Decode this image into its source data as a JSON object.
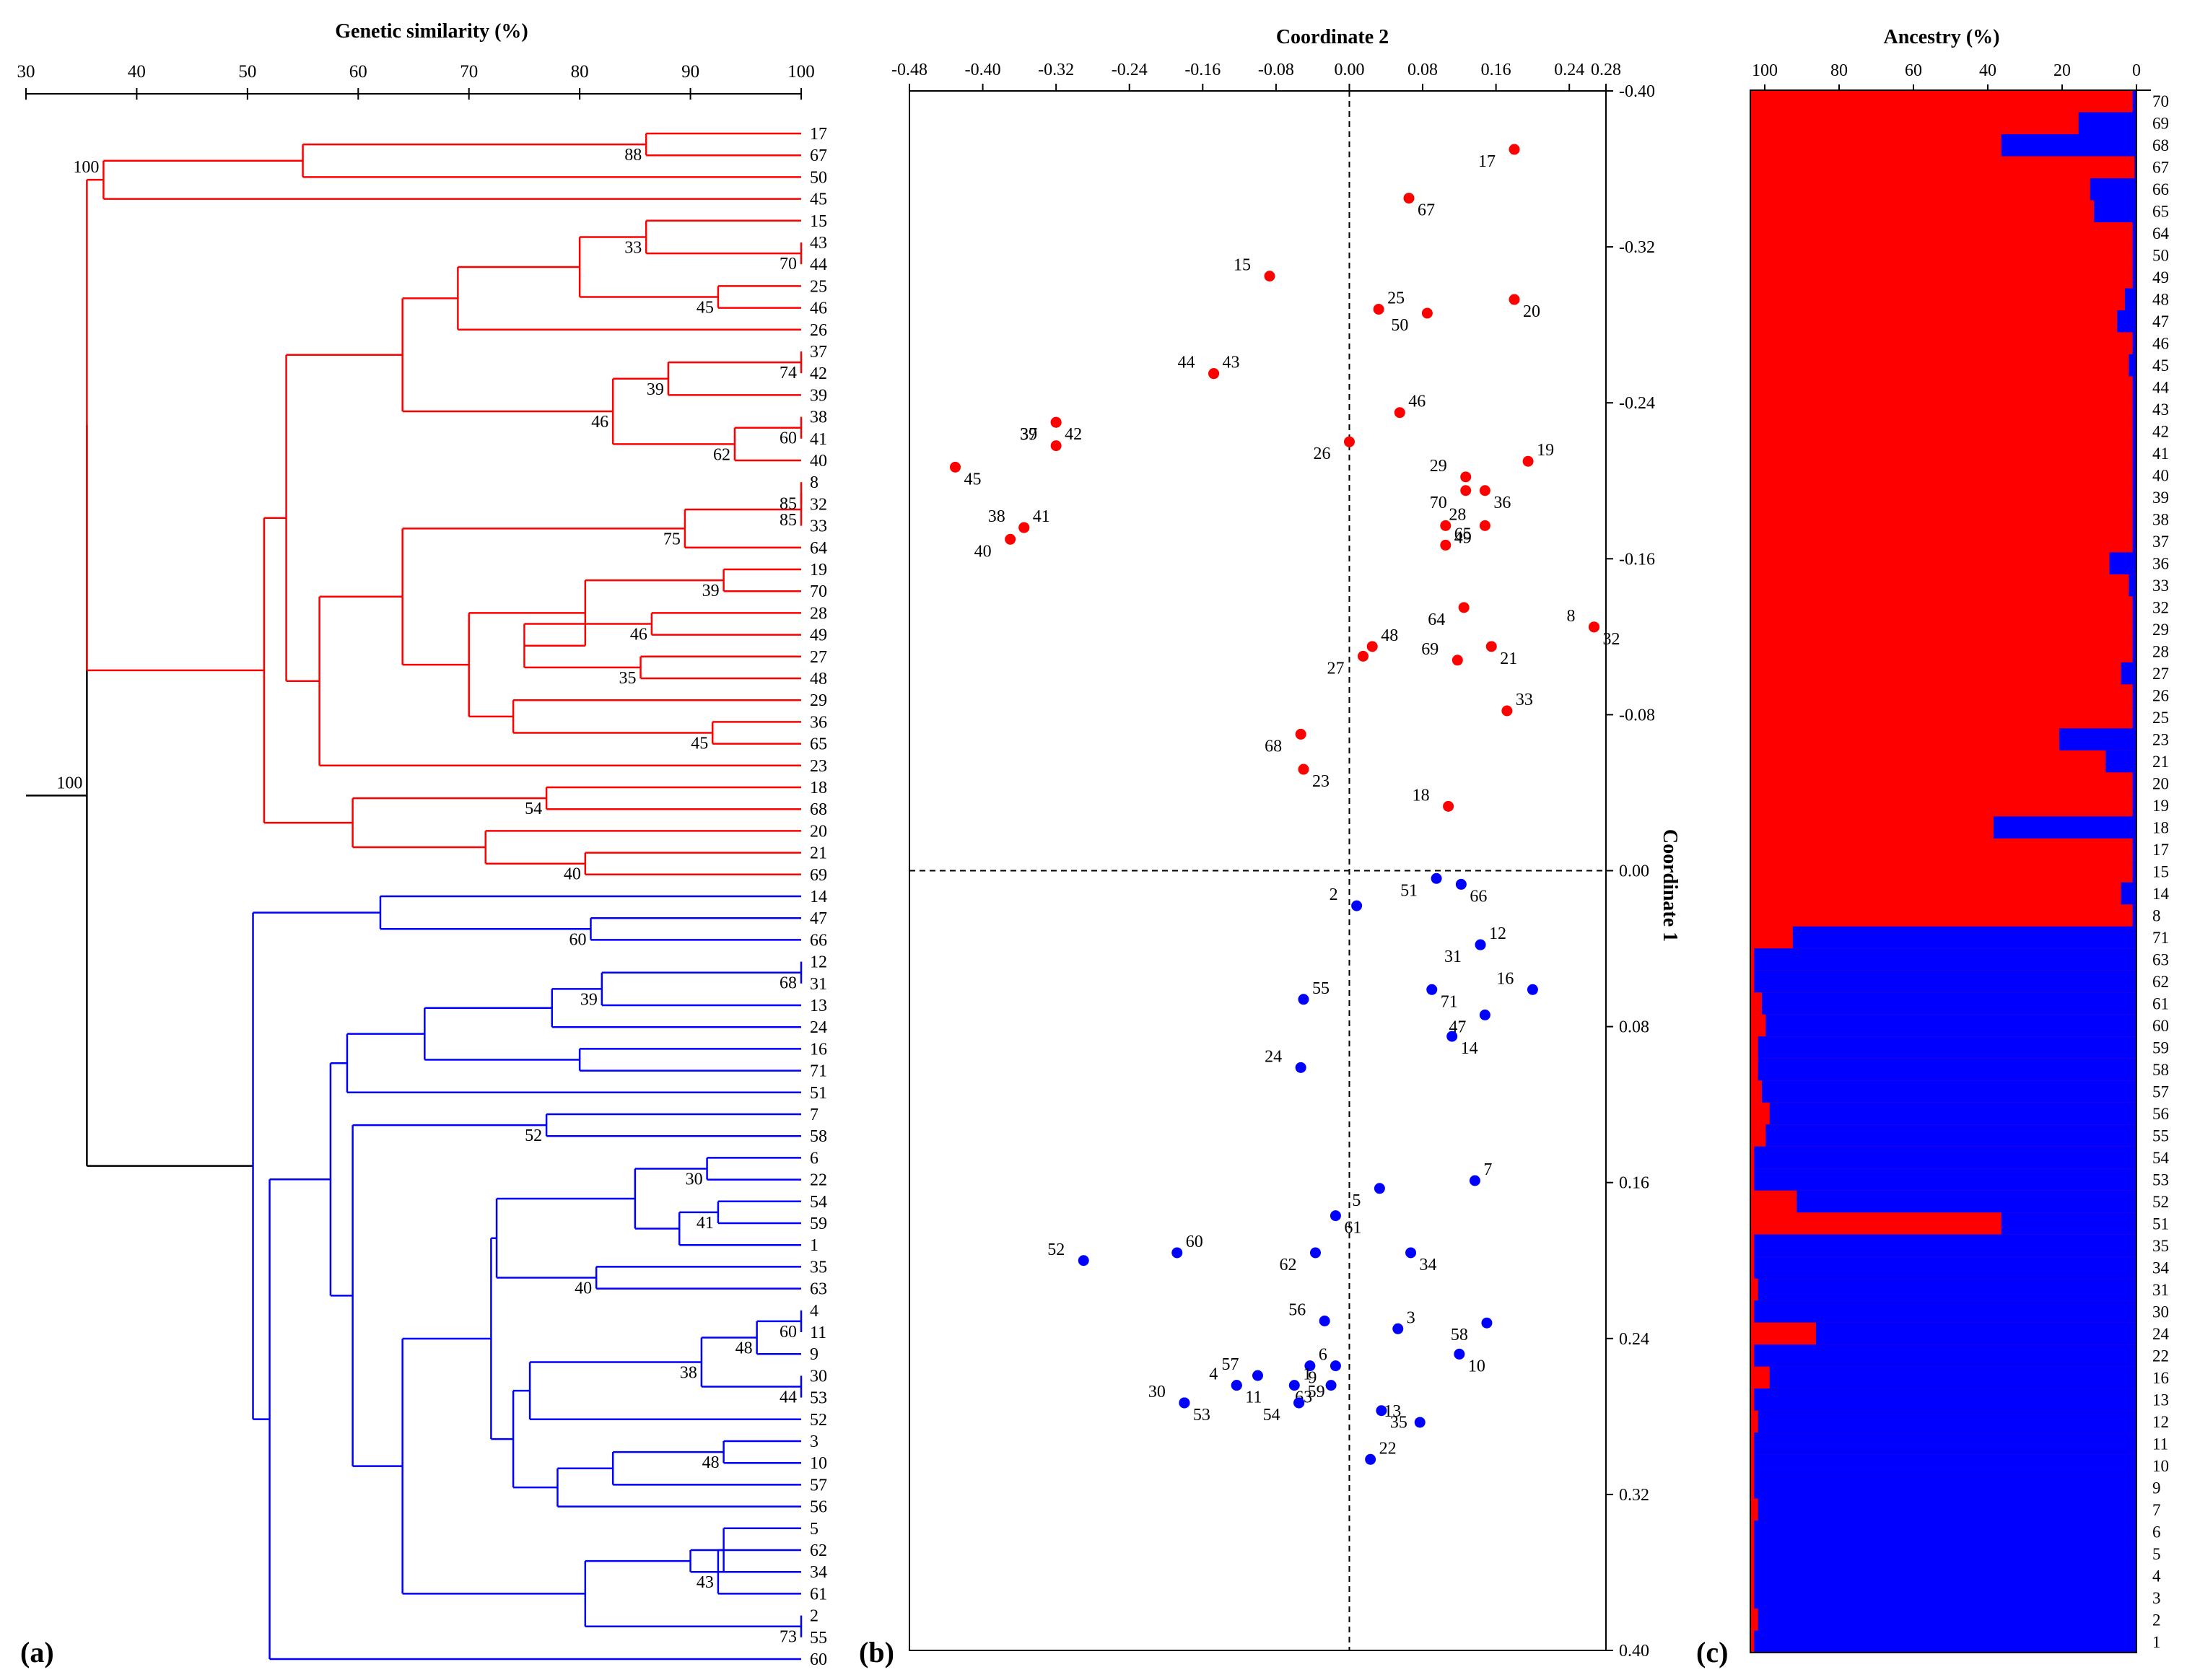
{
  "panel_a": {
    "label": "(a)",
    "title": "Genetic similarity (%)",
    "ticks": [
      30,
      40,
      50,
      60,
      70,
      80,
      90,
      100
    ],
    "leaf_order": [
      17,
      67,
      50,
      45,
      15,
      43,
      44,
      25,
      46,
      26,
      37,
      42,
      39,
      38,
      41,
      40,
      8,
      32,
      33,
      64,
      19,
      70,
      28,
      49,
      27,
      48,
      29,
      36,
      65,
      23,
      18,
      68,
      20,
      21,
      69,
      14,
      47,
      66,
      12,
      31,
      13,
      24,
      16,
      71,
      51,
      7,
      58,
      6,
      22,
      54,
      59,
      1,
      35,
      63,
      4,
      11,
      9,
      30,
      53,
      52,
      3,
      10,
      57,
      56,
      5,
      62,
      34,
      61,
      2,
      55,
      60
    ],
    "bootstrap": [
      "100",
      "88",
      "33",
      "70",
      "45",
      "74",
      "39",
      "46",
      "60",
      "62",
      "85",
      "85",
      "75",
      "39",
      "46",
      "35",
      "45",
      "54",
      "40",
      "100",
      "60",
      "68",
      "39",
      "52",
      "30",
      "41",
      "40",
      "60",
      "48",
      "38",
      "44",
      "48",
      "43",
      "73"
    ]
  },
  "panel_b": {
    "label": "(b)",
    "title": "Coordinate 2",
    "ylabel": "Coordinate 1"
  },
  "panel_c": {
    "label": "(c)",
    "title": "Ancestry (%)",
    "ticks": [
      "100",
      "80",
      "60",
      "40",
      "20",
      "0"
    ]
  },
  "colors": {
    "group1": "#ff0000",
    "group2": "#0000ff",
    "root": "#000000"
  },
  "chart_data": [
    {
      "type": "dendrogram",
      "title": "Genetic similarity (%)",
      "xlim": [
        30,
        100
      ],
      "clusters": [
        {
          "name": "red",
          "members": [
            17,
            67,
            50,
            45,
            15,
            43,
            44,
            25,
            46,
            26,
            37,
            42,
            39,
            38,
            41,
            40,
            8,
            32,
            33,
            64,
            19,
            70,
            28,
            49,
            27,
            48,
            29,
            36,
            65,
            23,
            18,
            68,
            20,
            21,
            69
          ]
        },
        {
          "name": "blue",
          "members": [
            14,
            47,
            66,
            12,
            31,
            13,
            24,
            16,
            71,
            51,
            7,
            58,
            6,
            22,
            54,
            59,
            1,
            35,
            63,
            4,
            11,
            9,
            30,
            53,
            52,
            3,
            10,
            57,
            56,
            5,
            62,
            34,
            61,
            2,
            55,
            60
          ]
        }
      ],
      "root_similarity": 35.5
    },
    {
      "type": "scatter",
      "title": "Coordinate 2",
      "xlabel": "Coordinate 2",
      "ylabel": "Coordinate 1",
      "xlim": [
        -0.48,
        0.28
      ],
      "ylim": [
        -0.4,
        0.4
      ],
      "xticks": [
        "-0.48",
        "-0.40",
        "-0.32",
        "-0.24",
        "-0.16",
        "-0.08",
        "0.00",
        "0.08",
        "0.16",
        "0.24",
        "0.28"
      ],
      "yticks": [
        "-0.40",
        "-0.32",
        "-0.24",
        "-0.16",
        "-0.08",
        "0.00",
        "0.08",
        "0.16",
        "0.24",
        "0.32",
        "0.40"
      ],
      "series": [
        {
          "name": "red",
          "points": [
            {
              "id": "17",
              "x": 0.18,
              "y": -0.37
            },
            {
              "id": "67",
              "x": 0.065,
              "y": -0.345
            },
            {
              "id": "15",
              "x": -0.087,
              "y": -0.305
            },
            {
              "id": "25",
              "x": 0.032,
              "y": -0.288
            },
            {
              "id": "50",
              "x": 0.085,
              "y": -0.286
            },
            {
              "id": "20",
              "x": 0.18,
              "y": -0.293
            },
            {
              "id": "44",
              "x": -0.148,
              "y": -0.255
            },
            {
              "id": "43",
              "x": -0.148,
              "y": -0.255
            },
            {
              "id": "37",
              "x": -0.32,
              "y": -0.23
            },
            {
              "id": "42",
              "x": -0.32,
              "y": -0.23
            },
            {
              "id": "39",
              "x": -0.32,
              "y": -0.218
            },
            {
              "id": "46",
              "x": 0.055,
              "y": -0.235
            },
            {
              "id": "26",
              "x": 0.0,
              "y": -0.22
            },
            {
              "id": "45",
              "x": -0.43,
              "y": -0.207
            },
            {
              "id": "29",
              "x": 0.127,
              "y": -0.202
            },
            {
              "id": "19",
              "x": 0.195,
              "y": -0.21
            },
            {
              "id": "70",
              "x": 0.127,
              "y": -0.195
            },
            {
              "id": "36",
              "x": 0.148,
              "y": -0.195
            },
            {
              "id": "38",
              "x": -0.355,
              "y": -0.176
            },
            {
              "id": "41",
              "x": -0.355,
              "y": -0.176
            },
            {
              "id": "40",
              "x": -0.37,
              "y": -0.17
            },
            {
              "id": "49",
              "x": 0.105,
              "y": -0.177
            },
            {
              "id": "28",
              "x": 0.148,
              "y": -0.177
            },
            {
              "id": "65",
              "x": 0.105,
              "y": -0.167
            },
            {
              "id": "64",
              "x": 0.125,
              "y": -0.135
            },
            {
              "id": "32",
              "x": 0.267,
              "y": -0.125
            },
            {
              "id": "8",
              "x": 0.267,
              "y": -0.125
            },
            {
              "id": "48",
              "x": 0.025,
              "y": -0.115
            },
            {
              "id": "27",
              "x": 0.015,
              "y": -0.11
            },
            {
              "id": "21",
              "x": 0.155,
              "y": -0.115
            },
            {
              "id": "69",
              "x": 0.118,
              "y": -0.108
            },
            {
              "id": "33",
              "x": 0.172,
              "y": -0.082
            },
            {
              "id": "68",
              "x": -0.053,
              "y": -0.07
            },
            {
              "id": "23",
              "x": -0.05,
              "y": -0.052
            },
            {
              "id": "18",
              "x": 0.108,
              "y": -0.033
            }
          ]
        },
        {
          "name": "blue",
          "points": [
            {
              "id": "51",
              "x": 0.095,
              "y": 0.004
            },
            {
              "id": "66",
              "x": 0.122,
              "y": 0.007
            },
            {
              "id": "2",
              "x": 0.008,
              "y": 0.018
            },
            {
              "id": "12",
              "x": 0.143,
              "y": 0.038
            },
            {
              "id": "31",
              "x": 0.143,
              "y": 0.038
            },
            {
              "id": "71",
              "x": 0.09,
              "y": 0.061
            },
            {
              "id": "16",
              "x": 0.2,
              "y": 0.061
            },
            {
              "id": "55",
              "x": -0.05,
              "y": 0.066
            },
            {
              "id": "47",
              "x": 0.148,
              "y": 0.074
            },
            {
              "id": "14",
              "x": 0.112,
              "y": 0.085
            },
            {
              "id": "24",
              "x": -0.053,
              "y": 0.101
            },
            {
              "id": "7",
              "x": 0.137,
              "y": 0.159
            },
            {
              "id": "5",
              "x": 0.033,
              "y": 0.163
            },
            {
              "id": "61",
              "x": -0.015,
              "y": 0.177
            },
            {
              "id": "52",
              "x": -0.29,
              "y": 0.2
            },
            {
              "id": "60",
              "x": -0.188,
              "y": 0.196
            },
            {
              "id": "62",
              "x": -0.037,
              "y": 0.196
            },
            {
              "id": "34",
              "x": 0.067,
              "y": 0.196
            },
            {
              "id": "56",
              "x": -0.027,
              "y": 0.231
            },
            {
              "id": "3",
              "x": 0.053,
              "y": 0.235
            },
            {
              "id": "58",
              "x": 0.15,
              "y": 0.232
            },
            {
              "id": "10",
              "x": 0.12,
              "y": 0.248
            },
            {
              "id": "57",
              "x": -0.1,
              "y": 0.259
            },
            {
              "id": "6",
              "x": -0.043,
              "y": 0.254
            },
            {
              "id": "9",
              "x": -0.015,
              "y": 0.254
            },
            {
              "id": "11",
              "x": -0.123,
              "y": 0.264
            },
            {
              "id": "4",
              "x": -0.123,
              "y": 0.264
            },
            {
              "id": "1",
              "x": -0.06,
              "y": 0.264
            },
            {
              "id": "63",
              "x": -0.02,
              "y": 0.264
            },
            {
              "id": "53",
              "x": -0.18,
              "y": 0.273
            },
            {
              "id": "30",
              "x": -0.18,
              "y": 0.273
            },
            {
              "id": "59",
              "x": -0.055,
              "y": 0.273
            },
            {
              "id": "54",
              "x": -0.055,
              "y": 0.273
            },
            {
              "id": "35",
              "x": 0.035,
              "y": 0.277
            },
            {
              "id": "13",
              "x": 0.077,
              "y": 0.283
            },
            {
              "id": "22",
              "x": 0.023,
              "y": 0.302
            }
          ]
        }
      ]
    },
    {
      "type": "stacked-bar",
      "title": "Ancestry (%)",
      "categories": [
        "70",
        "69",
        "68",
        "67",
        "66",
        "65",
        "64",
        "50",
        "49",
        "48",
        "47",
        "46",
        "45",
        "44",
        "43",
        "42",
        "41",
        "40",
        "39",
        "38",
        "37",
        "36",
        "33",
        "32",
        "29",
        "28",
        "27",
        "26",
        "25",
        "23",
        "21",
        "20",
        "19",
        "18",
        "17",
        "15",
        "14",
        "8",
        "71",
        "63",
        "62",
        "61",
        "60",
        "59",
        "58",
        "57",
        "56",
        "55",
        "54",
        "53",
        "52",
        "51",
        "35",
        "34",
        "31",
        "30",
        "24",
        "22",
        "16",
        "13",
        "12",
        "11",
        "10",
        "9",
        "7",
        "6",
        "5",
        "4",
        "3",
        "2",
        "1"
      ],
      "blue_percent": [
        1,
        15,
        35,
        0.5,
        12,
        11,
        1,
        1,
        1,
        3,
        5,
        1,
        2,
        1,
        1,
        1,
        1,
        1,
        1,
        1,
        1,
        7,
        2,
        1,
        1,
        1,
        4,
        1,
        1,
        20,
        8,
        1,
        1,
        37,
        1,
        1,
        4,
        1,
        89,
        99,
        99,
        97,
        96,
        98,
        98,
        97,
        95,
        96,
        99,
        99,
        88,
        35,
        99,
        99,
        98,
        99,
        83,
        99,
        95,
        99,
        98,
        99,
        99,
        99,
        98,
        99,
        99,
        99,
        99,
        98,
        99
      ]
    }
  ]
}
